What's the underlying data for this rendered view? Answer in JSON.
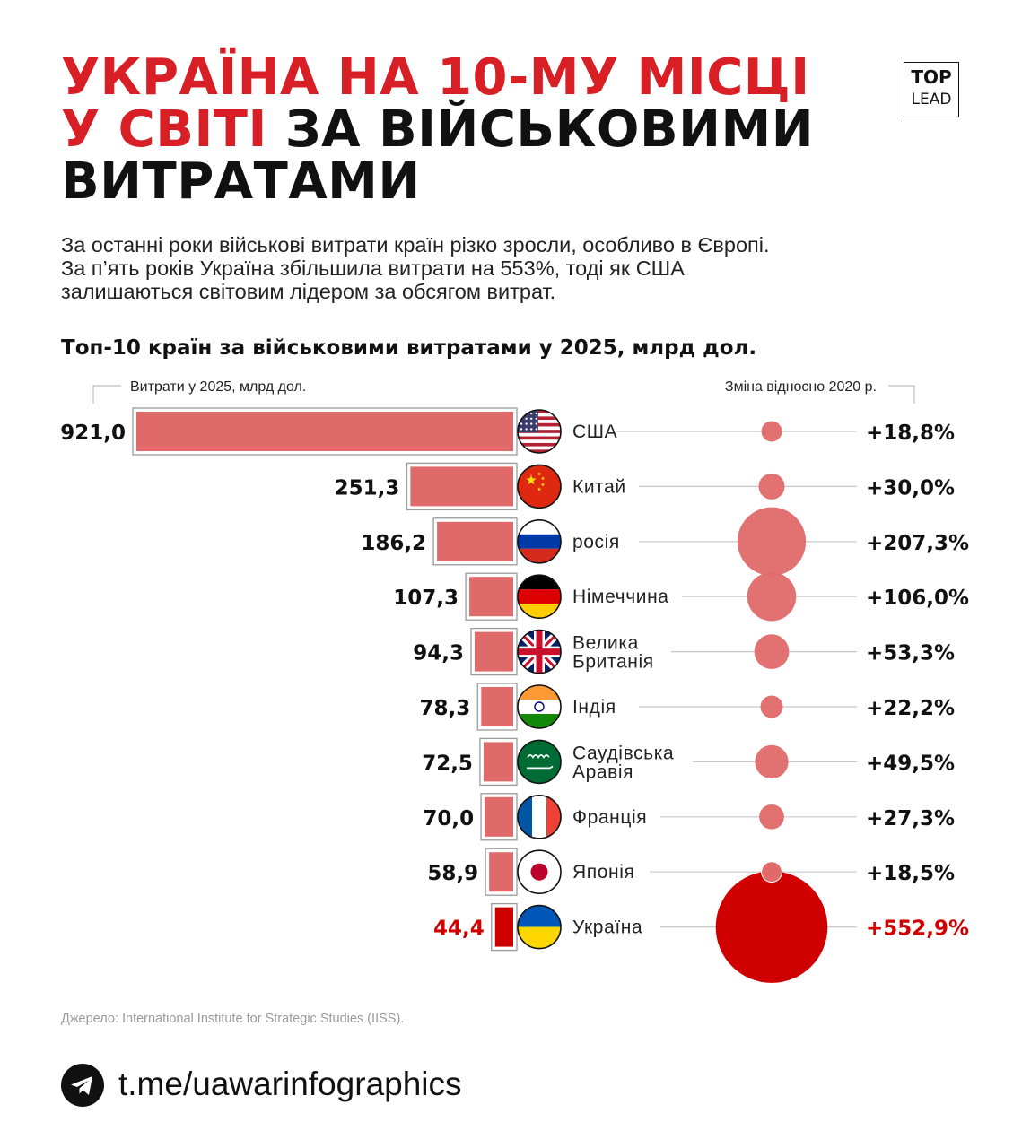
{
  "header": {
    "title_line1": "УКРАЇНА НА 10-МУ МІСЦІ",
    "title_line2_red": "У СВІТІ",
    "title_line2_black": " ЗА ВІЙСЬКОВИМИ",
    "title_line3": "ВИТРАТАМИ",
    "logo_top": "TOP",
    "logo_bottom": "LEAD"
  },
  "intro": {
    "line1": "За останні роки військові витрати країн різко зросли, особливо в Європі.",
    "line2": "За п’ять років Україна збільшила витрати на 553%, тоді як США",
    "line3": "залишаються світовим лідером за обсягом витрат."
  },
  "colors": {
    "accent_red": "#d81f26",
    "bar_fill": "#e06a6a",
    "bubble_fill": "#e06a6a",
    "highlight": "#d00000",
    "text": "#111111",
    "muted": "#9a9a9a"
  },
  "chart_data": {
    "type": "bar",
    "title": "Топ-10 країн за військовими витратами у 2025, млрд дол.",
    "left_axis_label": "Витрати у 2025, млрд дол.",
    "right_axis_label": "Зміна відносно 2020 р.",
    "categories": [
      "США",
      "Китай",
      "росія",
      "Німеччина",
      "Велика Британія",
      "Індія",
      "Саудівська Аравія",
      "Франція",
      "Японія",
      "Україна"
    ],
    "category_lines": [
      [
        "США"
      ],
      [
        "Китай"
      ],
      [
        "росія"
      ],
      [
        "Німеччина"
      ],
      [
        "Велика",
        "Британія"
      ],
      [
        "Індія"
      ],
      [
        "Саудівська",
        "Аравія"
      ],
      [
        "Франція"
      ],
      [
        "Японія"
      ],
      [
        "Україна"
      ]
    ],
    "flags": [
      "us-flag-icon",
      "china-flag-icon",
      "russia-flag-icon",
      "germany-flag-icon",
      "uk-flag-icon",
      "india-flag-icon",
      "saudi-flag-icon",
      "france-flag-icon",
      "japan-flag-icon",
      "ukraine-flag-icon"
    ],
    "values": [
      921.0,
      251.3,
      186.2,
      107.3,
      94.3,
      78.3,
      72.5,
      70.0,
      58.9,
      44.4
    ],
    "value_labels": [
      "921,0",
      "251,3",
      "186,2",
      "107,3",
      "94,3",
      "78,3",
      "72,5",
      "70,0",
      "58,9",
      "44,4"
    ],
    "change_pct": [
      18.8,
      30.0,
      207.3,
      106.0,
      53.3,
      22.2,
      49.5,
      27.3,
      18.5,
      552.9
    ],
    "change_labels": [
      "+18,8%",
      "+30,0%",
      "+207,3%",
      "+106,0%",
      "+53,3%",
      "+22,2%",
      "+49,5%",
      "+27,3%",
      "+18,5%",
      "+552,9%"
    ],
    "highlight_index": 9
  },
  "footer": {
    "source": "Джерело: International Institute for Strategic Studies (IISS).",
    "telegram_link": "t.me/uawarinfographics"
  }
}
